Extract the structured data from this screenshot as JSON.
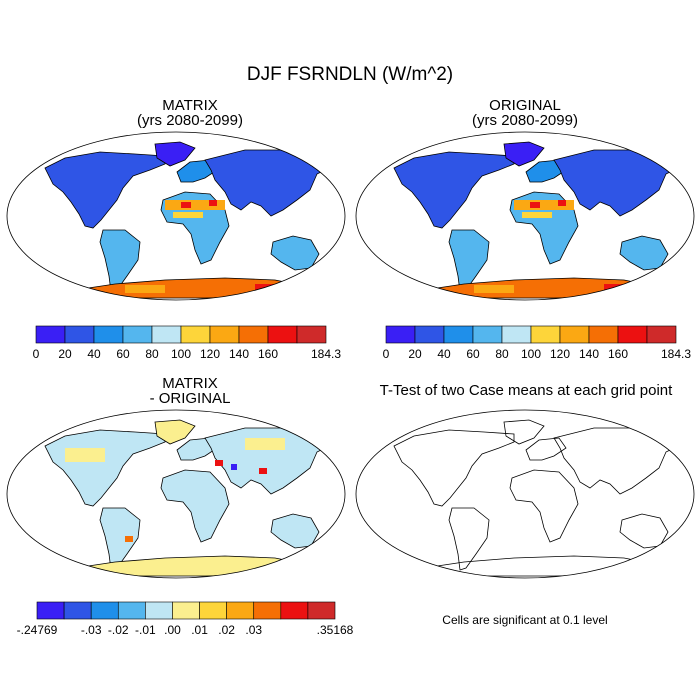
{
  "title": "DJF FSRNDLN (W/m^2)",
  "panels": [
    {
      "id": "matrix",
      "title_line1": "MATRIX",
      "title_line2": "(yrs 2080-2099)"
    },
    {
      "id": "original",
      "title_line1": "ORIGINAL",
      "title_line2": "(yrs 2080-2099)"
    },
    {
      "id": "diff",
      "title_line1": "MATRIX",
      "title_line2": "- ORIGINAL"
    },
    {
      "id": "ttest",
      "title_line1": "T-Test of two Case means at each grid point",
      "title_line2": ""
    }
  ],
  "colorbar_main": {
    "colors": [
      "#3a1ff5",
      "#2f55e6",
      "#1f8fea",
      "#54b6ee",
      "#bfe6f4",
      "#fdd53a",
      "#fba813",
      "#f56f05",
      "#ec1111",
      "#cf2a2a"
    ],
    "labels": [
      "0",
      "20",
      "40",
      "60",
      "80",
      "100",
      "120",
      "140",
      "160",
      "184.3"
    ]
  },
  "colorbar_diff": {
    "colors": [
      "#3a1ff5",
      "#2f55e6",
      "#1f8fea",
      "#54b6ee",
      "#bfe6f4",
      "#fbef8f",
      "#fdd53a",
      "#fba813",
      "#f56f05",
      "#ec1111",
      "#cf2a2a"
    ],
    "labels": [
      "-.24769",
      "-.03",
      "-.02",
      "-.01",
      ".00",
      ".01",
      ".02",
      ".03",
      "",
      ".35168"
    ]
  },
  "significance_note": "Cells are significant at 0.1 level"
}
